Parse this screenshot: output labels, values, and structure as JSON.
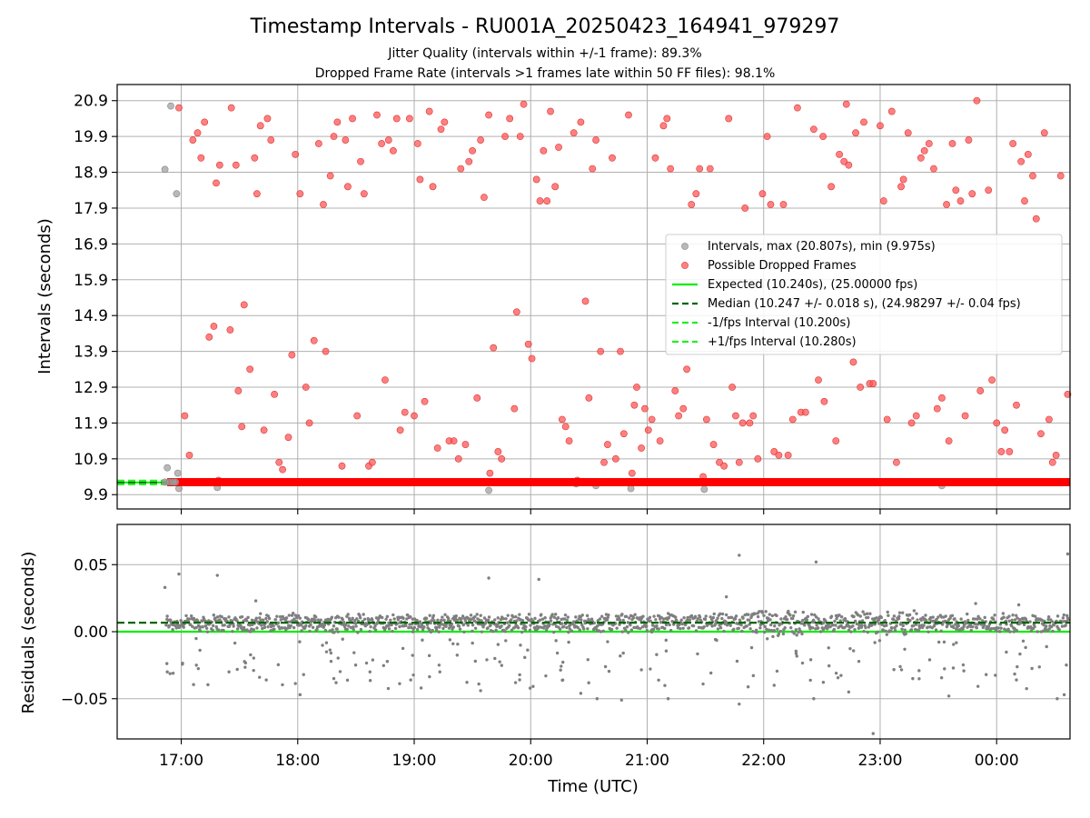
{
  "chart_data": [
    {
      "type": "scatter",
      "title": "Timestamp Intervals - RU001A_20250423_164941_979297",
      "subtitle_lines": [
        "Jitter Quality (intervals within +/-1 frame): 89.3%",
        "Dropped Frame Rate (intervals >1 frames late within 50 FF files): 98.1%"
      ],
      "ylabel": "Intervals (seconds)",
      "ylim": [
        9.5,
        21.35
      ],
      "yticks": [
        "9.9",
        "10.9",
        "11.9",
        "12.9",
        "13.9",
        "14.9",
        "15.9",
        "16.9",
        "17.9",
        "18.9",
        "19.9",
        "20.9"
      ],
      "xlim_hours": [
        16.45,
        24.63
      ],
      "x_major_ticks_hours": [
        17,
        18,
        19,
        20,
        21,
        22,
        23,
        24
      ],
      "grid": true,
      "legend_position": "center-right",
      "legend": [
        {
          "label": "Intervals, max (20.807s), min (9.975s)",
          "kind": "dot",
          "color": "#a0a0a0"
        },
        {
          "label": "Possible Dropped Frames",
          "kind": "dot",
          "color": "#ff5555"
        },
        {
          "label": "Expected (10.240s), (25.00000 fps)",
          "kind": "solid",
          "color": "#00ee00"
        },
        {
          "label": "Median (10.247 +/- 0.018 s), (24.98297 +/- 0.04 fps)",
          "kind": "dash",
          "color": "#006400"
        },
        {
          "label": "-1/fps Interval (10.200s)",
          "kind": "dash",
          "color": "#22ee22"
        },
        {
          "label": "+1/fps Interval (10.280s)",
          "kind": "dash",
          "color": "#22ee22"
        }
      ],
      "reference_lines": {
        "expected": 10.24,
        "median": 10.247,
        "minus_1_fps": 10.2,
        "plus_1_fps": 10.28
      },
      "band": {
        "x_start_hours": 16.88,
        "x_end_hours": 24.63,
        "y": 10.25,
        "color": "#ff0000"
      },
      "normal_points": [
        [
          16.86,
          18.98
        ],
        [
          16.91,
          20.75
        ],
        [
          16.96,
          18.3
        ],
        [
          16.88,
          10.65
        ],
        [
          16.97,
          10.5
        ],
        [
          16.98,
          10.07
        ],
        [
          17.31,
          10.1
        ],
        [
          19.64,
          10.02
        ],
        [
          20.39,
          10.2
        ],
        [
          20.56,
          10.15
        ],
        [
          20.86,
          10.07
        ],
        [
          21.49,
          10.05
        ],
        [
          23.53,
          10.15
        ]
      ],
      "dropped_points": [
        [
          16.98,
          20.7
        ],
        [
          17.03,
          12.1
        ],
        [
          17.07,
          11.0
        ],
        [
          17.1,
          19.8
        ],
        [
          17.14,
          20.0
        ],
        [
          17.17,
          19.3
        ],
        [
          17.2,
          20.3
        ],
        [
          17.24,
          14.3
        ],
        [
          17.28,
          14.6
        ],
        [
          17.3,
          18.6
        ],
        [
          17.32,
          10.3
        ],
        [
          17.33,
          19.1
        ],
        [
          17.42,
          14.5
        ],
        [
          17.43,
          20.7
        ],
        [
          17.47,
          19.1
        ],
        [
          17.49,
          12.8
        ],
        [
          17.52,
          11.8
        ],
        [
          17.54,
          15.2
        ],
        [
          17.59,
          13.4
        ],
        [
          17.63,
          19.3
        ],
        [
          17.65,
          18.3
        ],
        [
          17.68,
          20.2
        ],
        [
          17.71,
          11.7
        ],
        [
          17.74,
          20.4
        ],
        [
          17.77,
          19.8
        ],
        [
          17.8,
          12.7
        ],
        [
          17.84,
          10.8
        ],
        [
          17.87,
          10.6
        ],
        [
          17.92,
          11.5
        ],
        [
          17.95,
          13.8
        ],
        [
          17.98,
          19.4
        ],
        [
          18.02,
          18.3
        ],
        [
          18.07,
          12.9
        ],
        [
          18.1,
          11.9
        ],
        [
          18.14,
          14.2
        ],
        [
          18.18,
          19.7
        ],
        [
          18.22,
          18.0
        ],
        [
          18.24,
          13.9
        ],
        [
          18.28,
          18.8
        ],
        [
          18.31,
          19.9
        ],
        [
          18.34,
          20.3
        ],
        [
          18.38,
          10.7
        ],
        [
          18.41,
          19.8
        ],
        [
          18.43,
          18.5
        ],
        [
          18.47,
          20.4
        ],
        [
          18.51,
          12.1
        ],
        [
          18.54,
          19.2
        ],
        [
          18.57,
          18.3
        ],
        [
          18.61,
          10.7
        ],
        [
          18.64,
          10.8
        ],
        [
          18.68,
          20.5
        ],
        [
          18.72,
          19.7
        ],
        [
          18.75,
          13.1
        ],
        [
          18.78,
          19.8
        ],
        [
          18.82,
          19.5
        ],
        [
          18.85,
          20.4
        ],
        [
          18.88,
          11.7
        ],
        [
          18.92,
          12.2
        ],
        [
          18.96,
          20.4
        ],
        [
          19.0,
          12.1
        ],
        [
          19.03,
          19.7
        ],
        [
          19.05,
          18.7
        ],
        [
          19.09,
          12.5
        ],
        [
          19.13,
          20.6
        ],
        [
          19.16,
          18.5
        ],
        [
          19.2,
          11.2
        ],
        [
          19.23,
          20.1
        ],
        [
          19.26,
          20.3
        ],
        [
          19.3,
          11.4
        ],
        [
          19.34,
          11.4
        ],
        [
          19.38,
          10.9
        ],
        [
          19.4,
          19.0
        ],
        [
          19.44,
          11.3
        ],
        [
          19.47,
          19.2
        ],
        [
          19.5,
          19.5
        ],
        [
          19.54,
          12.6
        ],
        [
          19.57,
          19.8
        ],
        [
          19.6,
          18.2
        ],
        [
          19.64,
          20.5
        ],
        [
          19.65,
          10.5
        ],
        [
          19.68,
          14.0
        ],
        [
          19.72,
          11.1
        ],
        [
          19.75,
          10.9
        ],
        [
          19.78,
          19.9
        ],
        [
          19.82,
          20.4
        ],
        [
          19.86,
          12.3
        ],
        [
          19.88,
          15.0
        ],
        [
          19.91,
          19.9
        ],
        [
          19.94,
          20.8
        ],
        [
          19.98,
          14.1
        ],
        [
          20.01,
          13.7
        ],
        [
          20.05,
          18.7
        ],
        [
          20.08,
          18.1
        ],
        [
          20.11,
          19.5
        ],
        [
          20.14,
          18.1
        ],
        [
          20.17,
          20.6
        ],
        [
          20.21,
          18.5
        ],
        [
          20.24,
          19.6
        ],
        [
          20.27,
          12.0
        ],
        [
          20.3,
          11.8
        ],
        [
          20.33,
          11.4
        ],
        [
          20.37,
          20.0
        ],
        [
          20.4,
          10.3
        ],
        [
          20.43,
          20.3
        ],
        [
          20.47,
          15.3
        ],
        [
          20.5,
          12.6
        ],
        [
          20.53,
          19.0
        ],
        [
          20.56,
          19.8
        ],
        [
          20.6,
          13.9
        ],
        [
          20.63,
          10.8
        ],
        [
          20.66,
          11.3
        ],
        [
          20.7,
          19.3
        ],
        [
          20.73,
          10.9
        ],
        [
          20.77,
          13.9
        ],
        [
          20.8,
          11.6
        ],
        [
          20.84,
          20.5
        ],
        [
          20.87,
          10.5
        ],
        [
          20.89,
          12.4
        ],
        [
          20.91,
          12.9
        ],
        [
          20.95,
          11.2
        ],
        [
          20.98,
          12.3
        ],
        [
          21.01,
          11.7
        ],
        [
          21.04,
          12.0
        ],
        [
          21.07,
          19.3
        ],
        [
          21.11,
          11.4
        ],
        [
          21.14,
          20.2
        ],
        [
          21.17,
          20.4
        ],
        [
          21.2,
          19.0
        ],
        [
          21.24,
          12.8
        ],
        [
          21.27,
          12.1
        ],
        [
          21.31,
          12.3
        ],
        [
          21.34,
          13.4
        ],
        [
          21.38,
          18.0
        ],
        [
          21.42,
          18.3
        ],
        [
          21.45,
          19.0
        ],
        [
          21.48,
          10.4
        ],
        [
          21.51,
          12.0
        ],
        [
          21.54,
          19.0
        ],
        [
          21.57,
          11.3
        ],
        [
          21.62,
          10.8
        ],
        [
          21.66,
          10.7
        ],
        [
          21.7,
          20.4
        ],
        [
          21.73,
          12.9
        ],
        [
          21.76,
          12.1
        ],
        [
          21.79,
          10.8
        ],
        [
          21.82,
          11.9
        ],
        [
          21.84,
          17.9
        ],
        [
          21.88,
          11.9
        ],
        [
          21.91,
          12.1
        ],
        [
          21.95,
          10.9
        ],
        [
          21.99,
          18.3
        ],
        [
          22.03,
          19.9
        ],
        [
          22.06,
          18.0
        ],
        [
          22.09,
          11.1
        ],
        [
          22.13,
          11.0
        ],
        [
          22.17,
          18.0
        ],
        [
          22.21,
          11.0
        ],
        [
          22.25,
          12.0
        ],
        [
          22.29,
          20.7
        ],
        [
          22.32,
          12.2
        ],
        [
          22.36,
          12.2
        ],
        [
          22.43,
          20.1
        ],
        [
          22.47,
          13.1
        ],
        [
          22.51,
          19.9
        ],
        [
          22.52,
          12.5
        ],
        [
          22.58,
          18.5
        ],
        [
          22.62,
          11.4
        ],
        [
          22.65,
          19.4
        ],
        [
          22.69,
          19.2
        ],
        [
          22.71,
          20.8
        ],
        [
          22.73,
          19.1
        ],
        [
          22.77,
          13.6
        ],
        [
          22.79,
          20.0
        ],
        [
          22.83,
          12.9
        ],
        [
          22.86,
          20.3
        ],
        [
          22.91,
          13.0
        ],
        [
          22.94,
          13.0
        ],
        [
          23.0,
          20.2
        ],
        [
          23.03,
          18.1
        ],
        [
          23.06,
          12.0
        ],
        [
          23.1,
          20.6
        ],
        [
          23.14,
          10.8
        ],
        [
          23.18,
          18.5
        ],
        [
          23.2,
          18.7
        ],
        [
          23.24,
          20.0
        ],
        [
          23.27,
          11.9
        ],
        [
          23.31,
          12.1
        ],
        [
          23.35,
          19.3
        ],
        [
          23.38,
          19.5
        ],
        [
          23.42,
          19.7
        ],
        [
          23.46,
          19.0
        ],
        [
          23.49,
          12.3
        ],
        [
          23.53,
          12.6
        ],
        [
          23.57,
          18.0
        ],
        [
          23.59,
          11.4
        ],
        [
          23.62,
          19.7
        ],
        [
          23.65,
          18.4
        ],
        [
          23.69,
          18.1
        ],
        [
          23.73,
          12.1
        ],
        [
          23.76,
          19.8
        ],
        [
          23.79,
          18.3
        ],
        [
          23.83,
          20.9
        ],
        [
          23.86,
          12.8
        ],
        [
          23.93,
          18.4
        ],
        [
          23.96,
          13.1
        ],
        [
          24.0,
          11.9
        ],
        [
          24.04,
          11.1
        ],
        [
          24.07,
          11.7
        ],
        [
          24.11,
          11.1
        ],
        [
          24.14,
          19.7
        ],
        [
          24.17,
          12.4
        ],
        [
          24.21,
          19.2
        ],
        [
          24.24,
          18.1
        ],
        [
          24.27,
          19.4
        ],
        [
          24.31,
          18.8
        ],
        [
          24.34,
          17.6
        ],
        [
          24.38,
          11.6
        ],
        [
          24.41,
          20.0
        ],
        [
          24.45,
          12.0
        ],
        [
          24.48,
          10.8
        ],
        [
          24.51,
          11.0
        ],
        [
          24.55,
          18.8
        ],
        [
          24.61,
          12.7
        ]
      ]
    },
    {
      "type": "scatter",
      "xlabel": "Time (UTC)",
      "ylabel": "Residuals (seconds)",
      "ylim": [
        -0.08,
        0.08
      ],
      "ytick_values": [
        0.05,
        0.0,
        -0.05
      ],
      "yticks": [
        "0.05",
        "0.00",
        "−0.05"
      ],
      "xlim_hours": [
        16.45,
        24.63
      ],
      "x_major_ticks_hours": [
        17,
        18,
        19,
        20,
        21,
        22,
        23,
        24
      ],
      "xticks": [
        "17:00",
        "18:00",
        "19:00",
        "20:00",
        "21:00",
        "22:00",
        "23:00",
        "00:00"
      ],
      "grid": true,
      "zero_line": {
        "y": 0.0,
        "color": "#00ee00"
      },
      "median_line": {
        "y": 0.0067,
        "color": "#006400"
      },
      "cluster_center": 0.0065,
      "cluster_spread": 0.011,
      "outlier_points": [
        [
          16.86,
          0.033
        ],
        [
          16.98,
          0.043
        ],
        [
          17.31,
          0.042
        ],
        [
          17.64,
          0.023
        ],
        [
          19.64,
          0.04
        ],
        [
          20.07,
          0.039
        ],
        [
          21.68,
          0.026
        ],
        [
          21.79,
          0.057
        ],
        [
          22.45,
          0.052
        ],
        [
          23.82,
          0.021
        ],
        [
          24.19,
          0.02
        ],
        [
          24.61,
          0.058
        ],
        [
          16.88,
          -0.03
        ],
        [
          16.93,
          -0.031
        ],
        [
          17.13,
          -0.025
        ],
        [
          17.41,
          -0.03
        ],
        [
          17.73,
          -0.036
        ],
        [
          18.02,
          -0.047
        ],
        [
          18.31,
          -0.035
        ],
        [
          18.62,
          -0.03
        ],
        [
          18.97,
          -0.036
        ],
        [
          19.22,
          -0.03
        ],
        [
          19.57,
          -0.044
        ],
        [
          19.87,
          -0.038
        ],
        [
          20.13,
          -0.033
        ],
        [
          20.43,
          -0.046
        ],
        [
          20.57,
          -0.05
        ],
        [
          20.78,
          -0.051
        ],
        [
          21.18,
          -0.05
        ],
        [
          21.48,
          -0.039
        ],
        [
          21.79,
          -0.054
        ],
        [
          22.09,
          -0.04
        ],
        [
          22.43,
          -0.05
        ],
        [
          22.73,
          -0.045
        ],
        [
          22.94,
          -0.076
        ],
        [
          23.28,
          -0.035
        ],
        [
          23.59,
          -0.048
        ],
        [
          23.91,
          -0.032
        ],
        [
          24.17,
          -0.036
        ],
        [
          24.52,
          -0.05
        ],
        [
          24.58,
          -0.047
        ]
      ]
    }
  ]
}
